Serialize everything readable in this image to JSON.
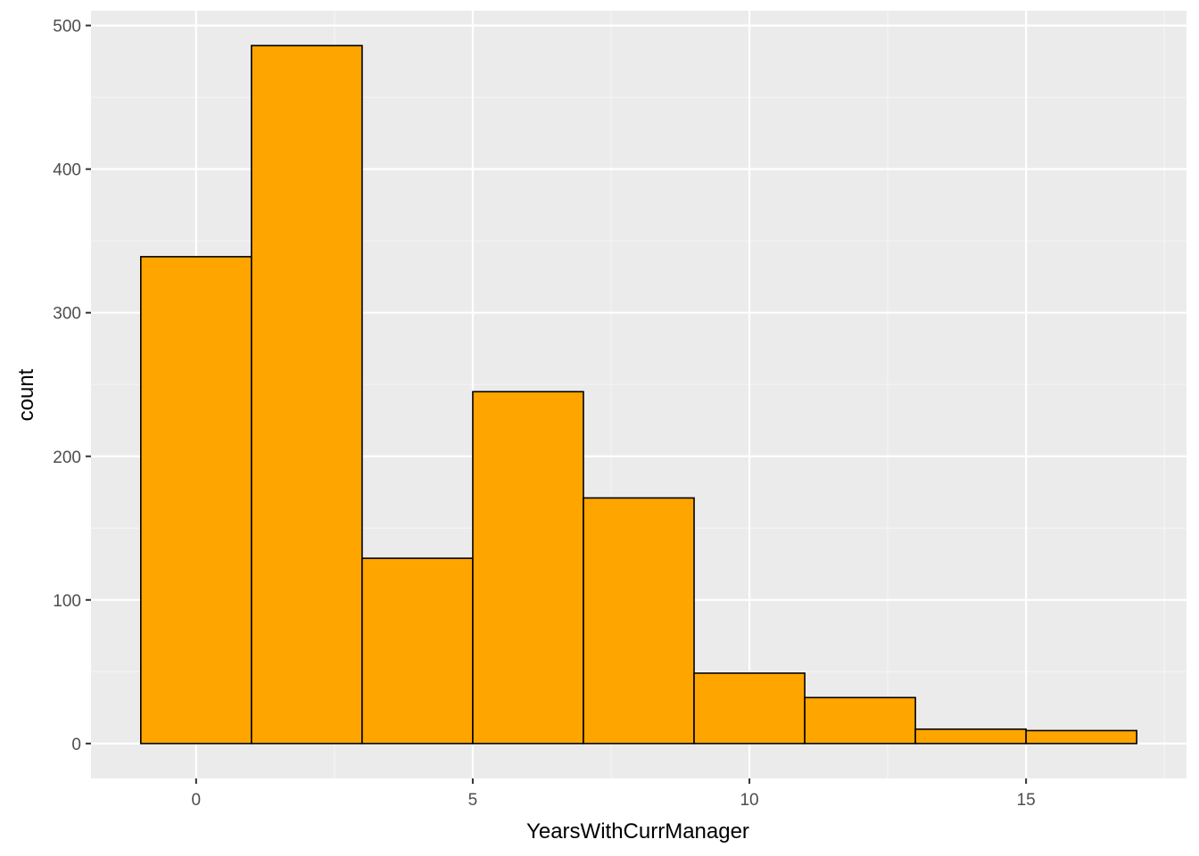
{
  "chart_data": {
    "type": "bar",
    "subtype": "histogram",
    "title": "",
    "xlabel": "YearsWithCurrManager",
    "ylabel": "count",
    "bin_width": 2,
    "bins": [
      {
        "start": -1,
        "end": 1,
        "count": 339
      },
      {
        "start": 1,
        "end": 3,
        "count": 486
      },
      {
        "start": 3,
        "end": 5,
        "count": 129
      },
      {
        "start": 5,
        "end": 7,
        "count": 245
      },
      {
        "start": 7,
        "end": 9,
        "count": 171
      },
      {
        "start": 9,
        "end": 11,
        "count": 49
      },
      {
        "start": 11,
        "end": 13,
        "count": 32
      },
      {
        "start": 13,
        "end": 15,
        "count": 10
      },
      {
        "start": 15,
        "end": 17,
        "count": 9
      }
    ],
    "xlim": [
      -1.9,
      17.9
    ],
    "ylim": [
      -24.3,
      510.3
    ],
    "x_ticks": [
      0,
      5,
      10,
      15
    ],
    "x_tick_labels": [
      "0",
      "5",
      "10",
      "15"
    ],
    "y_ticks": [
      0,
      100,
      200,
      300,
      400,
      500
    ],
    "y_tick_labels": [
      "0",
      "100",
      "200",
      "300",
      "400",
      "500"
    ],
    "grid": true,
    "legend": "none",
    "colors": {
      "bar_fill": "#FFA500",
      "bar_outline": "#000000",
      "panel_background": "#EBEBEB",
      "grid_major": "#FFFFFF",
      "grid_minor": "#F5F5F5",
      "tick_label": "#4D4D4D"
    }
  }
}
